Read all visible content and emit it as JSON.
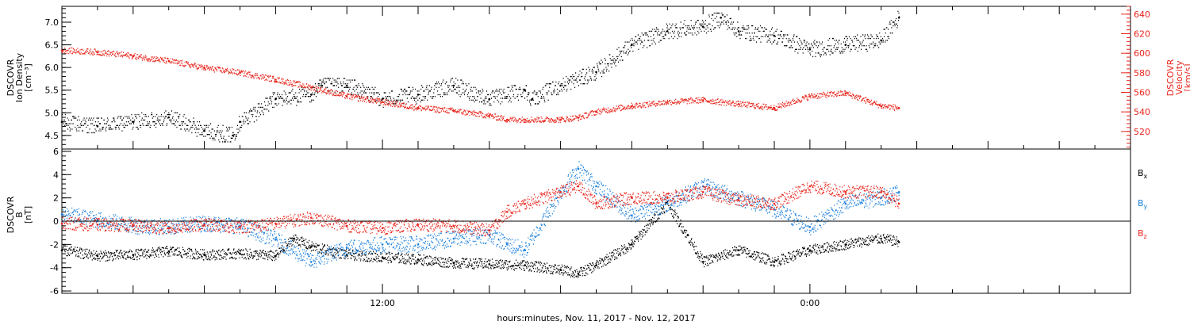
{
  "xaxis": {
    "label": "hours:minutes, Nov. 11, 2017 - Nov. 12, 2017",
    "range_hours": [
      3,
      33
    ],
    "labeled_ticks": [
      {
        "hour": 12,
        "label": "12:00"
      },
      {
        "hour": 24,
        "label": "0:00"
      }
    ],
    "minor_tick_hours": [
      3,
      5,
      7,
      9,
      11,
      13,
      15,
      17,
      19,
      21,
      23,
      25,
      27,
      29,
      31,
      33
    ]
  },
  "top_panel": {
    "left_axis": {
      "title_lines": [
        "DSCOVR",
        "Ion Density",
        "[cm⁻³]"
      ],
      "range": [
        4.2,
        7.35
      ],
      "ticks": [
        "4.5",
        "5.0",
        "5.5",
        "6.0",
        "6.5",
        "7.0"
      ],
      "color": "#000000"
    },
    "right_axis": {
      "title_lines": [
        "DSCOVR",
        "Velocity",
        "[km/s]"
      ],
      "range": [
        502,
        648
      ],
      "ticks": [
        "520",
        "540",
        "560",
        "580",
        "600",
        "620",
        "640"
      ],
      "color": "#e8261d"
    }
  },
  "bottom_panel": {
    "left_axis": {
      "title_lines": [
        "DSCOVR",
        "B",
        "[nT]"
      ],
      "range": [
        -6.2,
        6.2
      ],
      "ticks": [
        "-6",
        "-4",
        "-2",
        "0",
        "2",
        "4",
        "6"
      ],
      "color": "#000000"
    },
    "legend": [
      {
        "label": "B",
        "sub": "x",
        "color": "#000000"
      },
      {
        "label": "B",
        "sub": "y",
        "color": "#1a7fdc"
      },
      {
        "label": "B",
        "sub": "z",
        "color": "#e8261d"
      }
    ]
  },
  "chart_data": [
    {
      "type": "scatter",
      "title": "",
      "xlabel": "hours:minutes, Nov. 11, 2017 - Nov. 12, 2017",
      "ylabel": "DSCOVR Ion Density [cm-3] / DSCOVR Velocity [km/s]",
      "xlim": [
        3,
        33
      ],
      "series": [
        {
          "axis": "left",
          "color": "#000000",
          "x": [
            3.0,
            4.0,
            5.0,
            6.0,
            7.0,
            7.8,
            8.0,
            9.0,
            10.0,
            10.3,
            11.0,
            12.0,
            13.0,
            14.0,
            15.0,
            16.0,
            16.2,
            17.0,
            18.0,
            19.0,
            20.0,
            21.0,
            21.5,
            22.0,
            23.0,
            24.0,
            25.0,
            26.0,
            26.5
          ],
          "y": [
            4.8,
            4.7,
            4.8,
            4.9,
            4.6,
            4.5,
            4.8,
            5.3,
            5.4,
            5.6,
            5.6,
            5.3,
            5.4,
            5.6,
            5.3,
            5.5,
            5.3,
            5.6,
            5.9,
            6.5,
            6.8,
            6.9,
            7.1,
            6.8,
            6.7,
            6.4,
            6.5,
            6.6,
            7.1
          ]
        },
        {
          "axis": "right",
          "color": "#e8261d",
          "x": [
            3.0,
            4.0,
            5.0,
            6.0,
            7.0,
            8.0,
            9.0,
            10.0,
            11.0,
            12.0,
            13.0,
            14.0,
            15.0,
            15.5,
            16.0,
            17.0,
            17.5,
            18.0,
            19.0,
            20.0,
            21.0,
            22.0,
            23.0,
            24.0,
            25.0,
            26.0,
            26.5
          ],
          "y": [
            603,
            601,
            597,
            592,
            585,
            580,
            573,
            565,
            556,
            550,
            544,
            541,
            536,
            532,
            532,
            532,
            534,
            540,
            546,
            550,
            552,
            548,
            544,
            556,
            559,
            546,
            544
          ]
        }
      ]
    },
    {
      "type": "scatter",
      "title": "",
      "xlabel": "hours:minutes, Nov. 11, 2017 - Nov. 12, 2017",
      "ylabel": "DSCOVR B [nT]",
      "ylim": [
        -6.2,
        6.2
      ],
      "xlim": [
        3,
        33
      ],
      "series": [
        {
          "name": "Bx",
          "color": "#000000",
          "x": [
            3.0,
            4.0,
            5.0,
            6.0,
            7.0,
            8.0,
            9.0,
            9.5,
            10.0,
            11.0,
            12.0,
            13.0,
            14.0,
            15.0,
            16.0,
            17.0,
            17.5,
            18.0,
            19.0,
            20.0,
            21.0,
            22.0,
            23.0,
            24.0,
            25.0,
            26.0,
            26.5
          ],
          "y": [
            -2.5,
            -3.0,
            -2.9,
            -2.6,
            -2.9,
            -2.8,
            -3.0,
            -1.5,
            -2.2,
            -2.9,
            -3.1,
            -3.3,
            -3.6,
            -3.7,
            -3.8,
            -4.2,
            -4.5,
            -3.8,
            -2.0,
            1.5,
            -3.5,
            -2.5,
            -3.5,
            -2.5,
            -2.0,
            -1.5,
            -1.8
          ]
        },
        {
          "name": "By",
          "color": "#1a7fdc",
          "x": [
            3.0,
            4.0,
            5.0,
            6.0,
            7.0,
            8.0,
            9.0,
            10.0,
            11.0,
            12.0,
            13.0,
            14.0,
            15.0,
            15.5,
            16.0,
            17.0,
            17.5,
            18.0,
            19.0,
            20.0,
            21.0,
            22.0,
            23.0,
            24.0,
            25.0,
            26.0,
            26.5
          ],
          "y": [
            0.6,
            0.1,
            -0.4,
            -0.5,
            -0.2,
            -0.4,
            -1.6,
            -3.5,
            -2.3,
            -2.0,
            -2.0,
            -1.5,
            -1.2,
            -2.0,
            -2.5,
            2.5,
            4.5,
            3.0,
            0.5,
            1.5,
            3.0,
            2.0,
            1.0,
            -0.5,
            1.5,
            2.0,
            2.5
          ]
        },
        {
          "name": "Bz",
          "color": "#e8261d",
          "x": [
            3.0,
            4.0,
            5.0,
            6.0,
            7.0,
            8.0,
            9.0,
            10.0,
            11.0,
            12.0,
            13.0,
            14.0,
            15.0,
            15.5,
            16.0,
            17.0,
            17.5,
            18.0,
            19.0,
            20.0,
            21.0,
            22.0,
            23.0,
            24.0,
            25.0,
            26.0,
            26.5
          ],
          "y": [
            -0.2,
            -0.3,
            -0.4,
            -0.6,
            -0.3,
            -0.5,
            -0.2,
            0.3,
            -0.4,
            -0.6,
            -0.3,
            -0.4,
            -0.8,
            0.8,
            1.5,
            2.5,
            3.0,
            1.5,
            2.0,
            2.0,
            2.5,
            1.8,
            1.5,
            3.0,
            2.5,
            2.5,
            1.5
          ]
        }
      ]
    }
  ]
}
